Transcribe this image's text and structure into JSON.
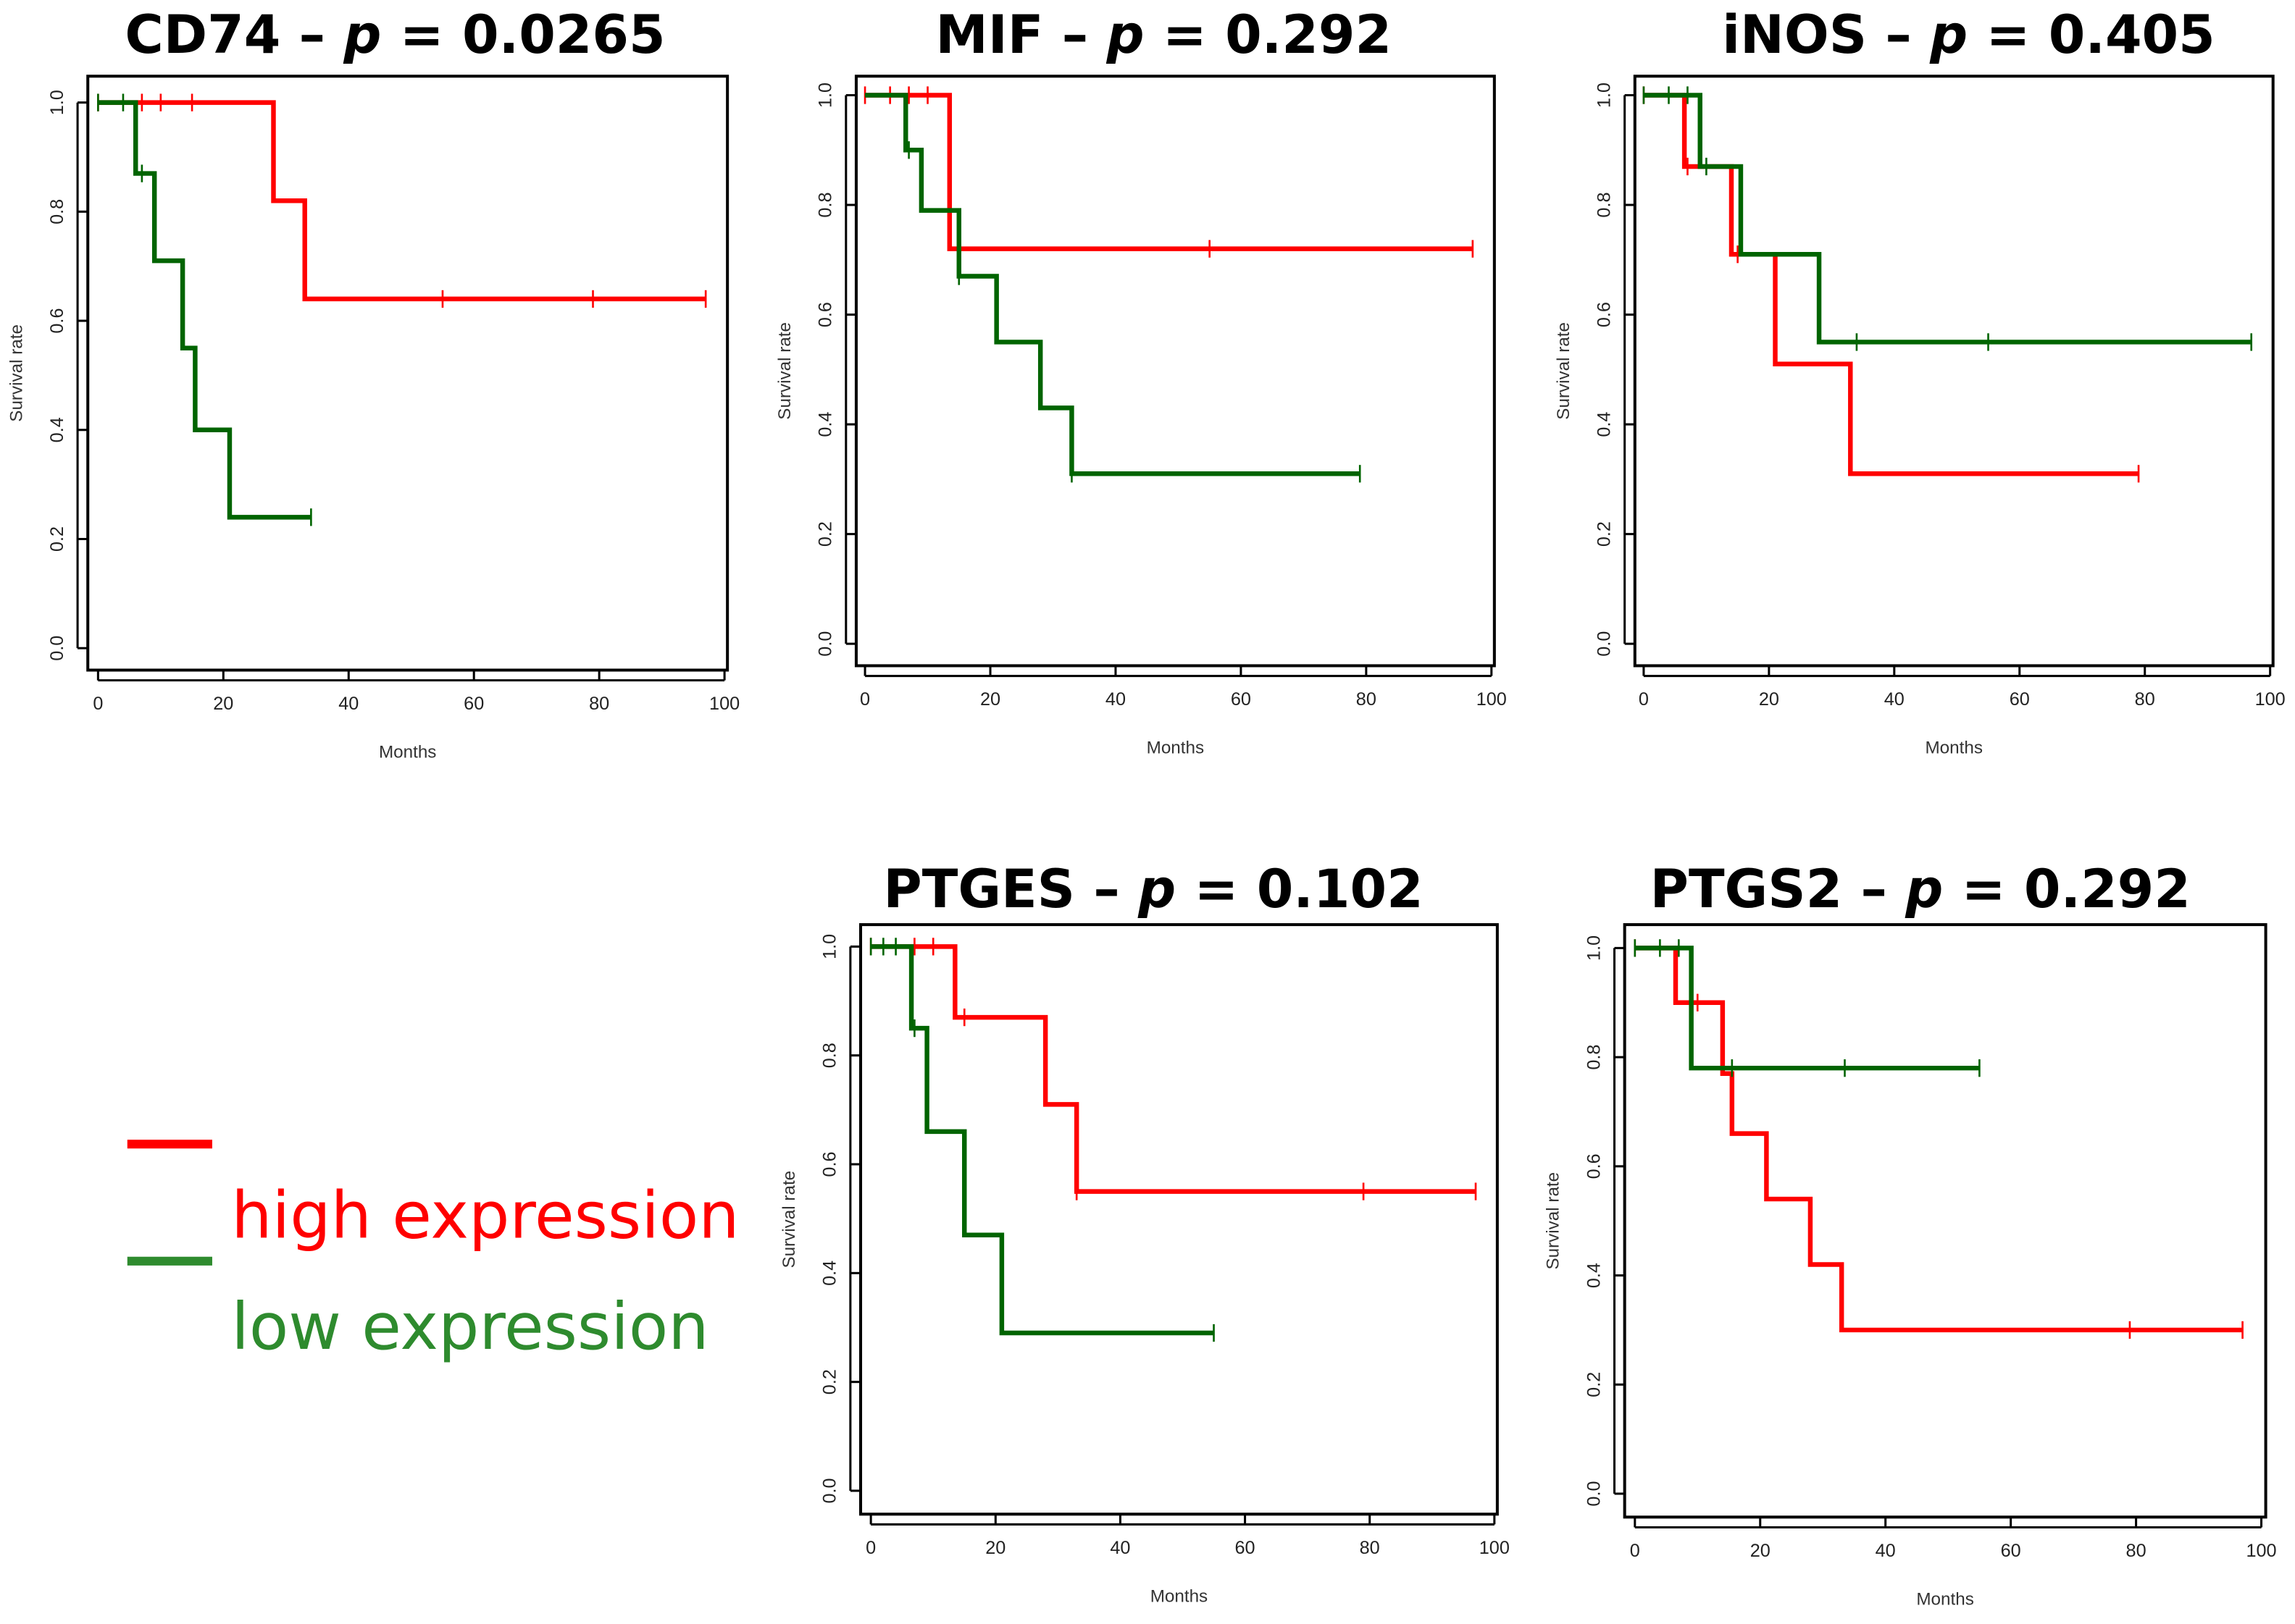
{
  "colors": {
    "high": "#ff0000",
    "low": "#006400",
    "axis": "#000000"
  },
  "legend": {
    "high_label": "high expression",
    "low_label": "low expression",
    "high_color": "#ff0000",
    "low_color": "#2e8b2e"
  },
  "chart_data": [
    {
      "type": "line",
      "subtype": "kaplan-meier",
      "gene": "CD74",
      "p_symbol": "p",
      "p_value": "0.0265",
      "xlabel": "Months",
      "ylabel": "Survival rate",
      "xlim": [
        0,
        100
      ],
      "ylim": [
        0,
        1
      ],
      "xticks": [
        "0",
        "20",
        "40",
        "60",
        "80",
        "100"
      ],
      "yticks": [
        "0.0",
        "0.2",
        "0.4",
        "0.6",
        "0.8",
        "1.0"
      ],
      "series": [
        {
          "name": "high expression",
          "steps": [
            [
              0,
              1.0
            ],
            [
              28,
              0.82
            ],
            [
              33,
              0.64
            ]
          ],
          "end": 97,
          "censored": [
            0,
            7,
            10,
            15,
            55,
            79,
            97
          ]
        },
        {
          "name": "low expression",
          "steps": [
            [
              0,
              1.0
            ],
            [
              6,
              0.87
            ],
            [
              9,
              0.71
            ],
            [
              13.5,
              0.55
            ],
            [
              15.5,
              0.4
            ],
            [
              21,
              0.24
            ]
          ],
          "end": 34,
          "censored": [
            0,
            4,
            7,
            34
          ]
        }
      ]
    },
    {
      "type": "line",
      "subtype": "kaplan-meier",
      "gene": "MIF",
      "p_symbol": "p",
      "p_value": "0.292",
      "xlabel": "Months",
      "ylabel": "Survival rate",
      "xlim": [
        0,
        100
      ],
      "ylim": [
        0,
        1
      ],
      "xticks": [
        "0",
        "20",
        "40",
        "60",
        "80",
        "100"
      ],
      "yticks": [
        "0.0",
        "0.2",
        "0.4",
        "0.6",
        "0.8",
        "1.0"
      ],
      "series": [
        {
          "name": "high expression",
          "steps": [
            [
              0,
              1.0
            ],
            [
              13.5,
              0.72
            ]
          ],
          "end": 97,
          "censored": [
            0,
            4,
            7,
            10,
            55,
            97
          ]
        },
        {
          "name": "low expression",
          "steps": [
            [
              0,
              1.0
            ],
            [
              6.5,
              0.9
            ],
            [
              9,
              0.79
            ],
            [
              15,
              0.67
            ],
            [
              21,
              0.55
            ],
            [
              28,
              0.43
            ],
            [
              33,
              0.31
            ]
          ],
          "end": 79,
          "censored": [
            7,
            15,
            33,
            79
          ]
        }
      ]
    },
    {
      "type": "line",
      "subtype": "kaplan-meier",
      "gene": "iNOS",
      "p_symbol": "p",
      "p_value": "0.405",
      "xlabel": "Months",
      "ylabel": "Survival rate",
      "xlim": [
        0,
        100
      ],
      "ylim": [
        0,
        1
      ],
      "xticks": [
        "0",
        "20",
        "40",
        "60",
        "80",
        "100"
      ],
      "yticks": [
        "0.0",
        "0.2",
        "0.4",
        "0.6",
        "0.8",
        "1.0"
      ],
      "series": [
        {
          "name": "high expression",
          "steps": [
            [
              0,
              1.0
            ],
            [
              6.5,
              0.87
            ],
            [
              14,
              0.71
            ],
            [
              21,
              0.51
            ],
            [
              33,
              0.31
            ]
          ],
          "end": 79,
          "censored": [
            0,
            7,
            15,
            79
          ]
        },
        {
          "name": "low expression",
          "steps": [
            [
              0,
              1.0
            ],
            [
              9,
              0.87
            ],
            [
              15.5,
              0.71
            ],
            [
              28,
              0.55
            ]
          ],
          "end": 97,
          "censored": [
            0,
            4,
            7,
            10,
            34,
            55,
            97
          ]
        }
      ]
    },
    {
      "type": "line",
      "subtype": "kaplan-meier",
      "gene": "PTGES",
      "p_symbol": "p",
      "p_value": "0.102",
      "xlabel": "Months",
      "ylabel": "Survival rate",
      "xlim": [
        0,
        100
      ],
      "ylim": [
        0,
        1
      ],
      "xticks": [
        "0",
        "20",
        "40",
        "60",
        "80",
        "100"
      ],
      "yticks": [
        "0.0",
        "0.2",
        "0.4",
        "0.6",
        "0.8",
        "1.0"
      ],
      "series": [
        {
          "name": "high expression",
          "steps": [
            [
              0,
              1.0
            ],
            [
              13.5,
              0.87
            ],
            [
              28,
              0.71
            ],
            [
              33,
              0.55
            ]
          ],
          "end": 97,
          "censored": [
            0,
            7,
            10,
            15,
            33,
            79,
            97
          ]
        },
        {
          "name": "low expression",
          "steps": [
            [
              0,
              1.0
            ],
            [
              6.5,
              0.85
            ],
            [
              9,
              0.66
            ],
            [
              15,
              0.47
            ],
            [
              21,
              0.29
            ]
          ],
          "end": 55,
          "censored": [
            0,
            2,
            4,
            7,
            55
          ]
        }
      ]
    },
    {
      "type": "line",
      "subtype": "kaplan-meier",
      "gene": "PTGS2",
      "p_symbol": "p",
      "p_value": "0.292",
      "xlabel": "Months",
      "ylabel": "Survival rate",
      "xlim": [
        0,
        100
      ],
      "ylim": [
        0,
        1
      ],
      "xticks": [
        "0",
        "20",
        "40",
        "60",
        "80",
        "100"
      ],
      "yticks": [
        "0.0",
        "0.2",
        "0.4",
        "0.6",
        "0.8",
        "1.0"
      ],
      "series": [
        {
          "name": "high expression",
          "steps": [
            [
              0,
              1.0
            ],
            [
              6.5,
              0.9
            ],
            [
              14,
              0.77
            ],
            [
              15.5,
              0.66
            ],
            [
              21,
              0.54
            ],
            [
              28,
              0.42
            ],
            [
              33,
              0.3
            ]
          ],
          "end": 97,
          "censored": [
            0,
            10,
            79,
            97
          ]
        },
        {
          "name": "low expression",
          "steps": [
            [
              0,
              1.0
            ],
            [
              9,
              0.78
            ]
          ],
          "end": 55,
          "censored": [
            0,
            4,
            7,
            15.5,
            33.5,
            55
          ]
        }
      ]
    }
  ]
}
